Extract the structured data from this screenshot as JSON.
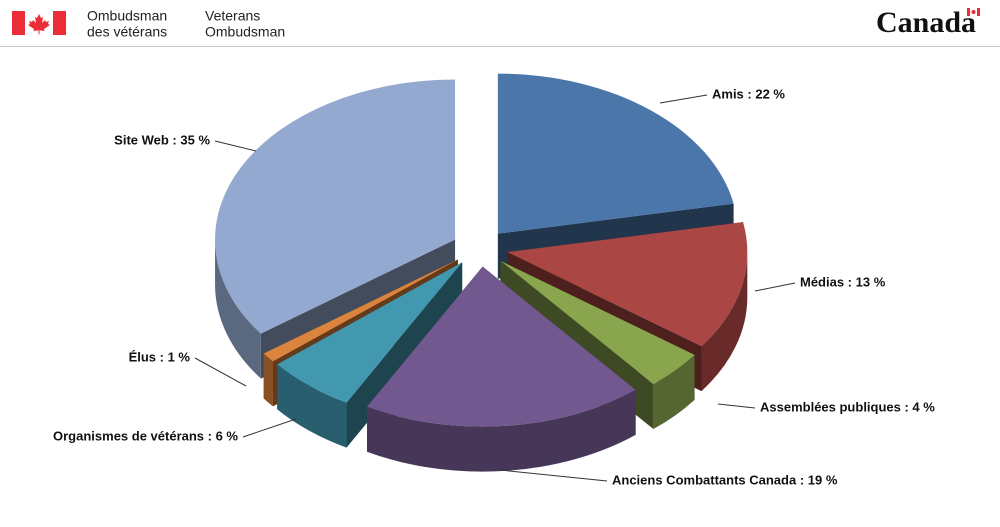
{
  "header": {
    "org_fr_1": "Ombudsman",
    "org_fr_2": "des vétérans",
    "org_en_1": "Veterans",
    "org_en_2": "Ombudsman",
    "wordmark": "Canada"
  },
  "chart_data": {
    "type": "pie3d",
    "values": [
      22,
      13,
      4,
      19,
      6,
      1,
      35
    ],
    "value_labels": [
      "Amis : 22 %",
      "Médias : 13 %",
      "Assemblées publiques : 4 %",
      "Anciens Combattants Canada : 19 %",
      "Organismes de vétérans : 6 %",
      "Élus : 1 %",
      "Site Web : 35 %"
    ],
    "colors": [
      "#4a76aa",
      "#aa4643",
      "#89a54e",
      "#71588f",
      "#4198af",
      "#db843d",
      "#93a9cf"
    ]
  }
}
